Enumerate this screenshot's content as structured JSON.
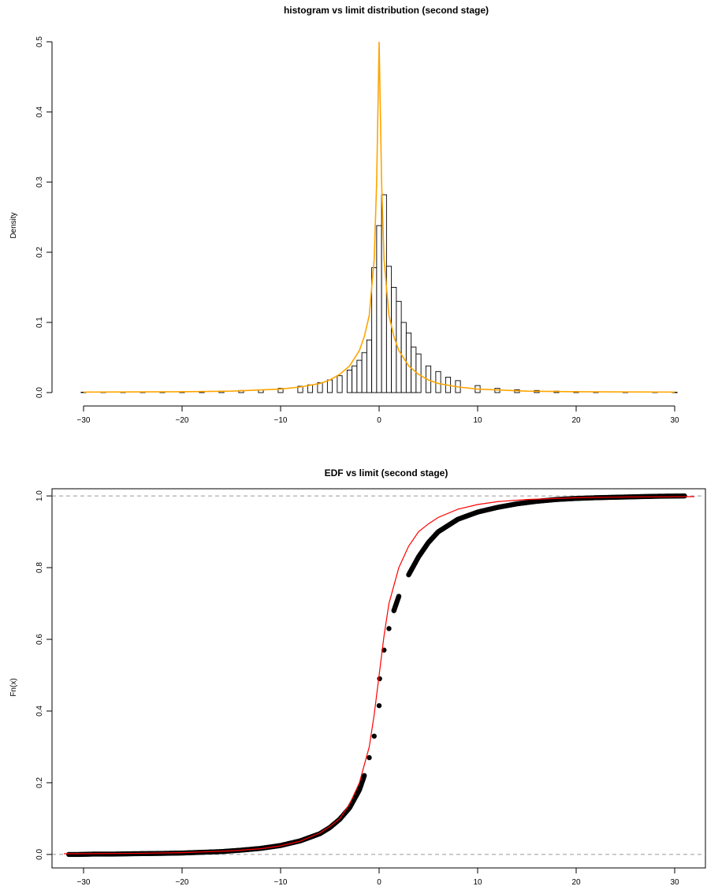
{
  "chart_data": [
    {
      "type": "bar",
      "title": "histogram vs limit distribution (second stage)",
      "xlabel": "",
      "ylabel": "Density",
      "xlim": [
        -32,
        32
      ],
      "ylim": [
        0,
        0.5
      ],
      "x_ticks": [
        "−30",
        "−20",
        "−10",
        "0",
        "10",
        "20",
        "30"
      ],
      "y_ticks": [
        "0.0",
        "0.1",
        "0.2",
        "0.3",
        "0.4",
        "0.5"
      ],
      "grid": false,
      "histogram": {
        "bin_width": 0.5,
        "bins": [
          {
            "x": -30,
            "d": 0.0005
          },
          {
            "x": -28,
            "d": 0.0006
          },
          {
            "x": -26,
            "d": 0.0007
          },
          {
            "x": -24,
            "d": 0.0009
          },
          {
            "x": -22,
            "d": 0.001
          },
          {
            "x": -20,
            "d": 0.0012
          },
          {
            "x": -18,
            "d": 0.0016
          },
          {
            "x": -16,
            "d": 0.002
          },
          {
            "x": -14,
            "d": 0.003
          },
          {
            "x": -12,
            "d": 0.004
          },
          {
            "x": -10,
            "d": 0.006
          },
          {
            "x": -8,
            "d": 0.009
          },
          {
            "x": -7,
            "d": 0.011
          },
          {
            "x": -6,
            "d": 0.014
          },
          {
            "x": -5,
            "d": 0.018
          },
          {
            "x": -4,
            "d": 0.024
          },
          {
            "x": -3,
            "d": 0.032
          },
          {
            "x": -2.5,
            "d": 0.038
          },
          {
            "x": -2,
            "d": 0.046
          },
          {
            "x": -1.5,
            "d": 0.057
          },
          {
            "x": -1,
            "d": 0.075
          },
          {
            "x": -0.5,
            "d": 0.178
          },
          {
            "x": 0,
            "d": 0.238
          },
          {
            "x": 0.5,
            "d": 0.282
          },
          {
            "x": 1,
            "d": 0.18
          },
          {
            "x": 1.5,
            "d": 0.15
          },
          {
            "x": 2,
            "d": 0.13
          },
          {
            "x": 2.5,
            "d": 0.1
          },
          {
            "x": 3,
            "d": 0.085
          },
          {
            "x": 3.5,
            "d": 0.065
          },
          {
            "x": 4,
            "d": 0.055
          },
          {
            "x": 5,
            "d": 0.038
          },
          {
            "x": 6,
            "d": 0.03
          },
          {
            "x": 7,
            "d": 0.022
          },
          {
            "x": 8,
            "d": 0.017
          },
          {
            "x": 10,
            "d": 0.01
          },
          {
            "x": 12,
            "d": 0.006
          },
          {
            "x": 14,
            "d": 0.004
          },
          {
            "x": 16,
            "d": 0.003
          },
          {
            "x": 18,
            "d": 0.002
          },
          {
            "x": 20,
            "d": 0.0015
          },
          {
            "x": 22,
            "d": 0.001
          },
          {
            "x": 25,
            "d": 0.0008
          },
          {
            "x": 28,
            "d": 0.0006
          },
          {
            "x": 30,
            "d": 0.0005
          }
        ]
      },
      "density_curve": {
        "color": "#ffa500",
        "points": [
          [
            -30,
            0.0007
          ],
          [
            -20,
            0.0012
          ],
          [
            -15,
            0.002
          ],
          [
            -10,
            0.005
          ],
          [
            -8,
            0.008
          ],
          [
            -6,
            0.013
          ],
          [
            -5,
            0.018
          ],
          [
            -4,
            0.026
          ],
          [
            -3,
            0.038
          ],
          [
            -2,
            0.06
          ],
          [
            -1.5,
            0.08
          ],
          [
            -1,
            0.11
          ],
          [
            -0.5,
            0.19
          ],
          [
            -0.25,
            0.3
          ],
          [
            0,
            0.5
          ],
          [
            0.25,
            0.3
          ],
          [
            0.5,
            0.19
          ],
          [
            1,
            0.11
          ],
          [
            1.5,
            0.08
          ],
          [
            2,
            0.06
          ],
          [
            3,
            0.038
          ],
          [
            4,
            0.026
          ],
          [
            5,
            0.018
          ],
          [
            6,
            0.013
          ],
          [
            8,
            0.008
          ],
          [
            10,
            0.005
          ],
          [
            15,
            0.002
          ],
          [
            20,
            0.0012
          ],
          [
            30,
            0.0007
          ]
        ]
      }
    },
    {
      "type": "scatter",
      "title": "EDF vs limit (second stage)",
      "xlabel": "",
      "ylabel": "Fn(x)",
      "xlim": [
        -32,
        32
      ],
      "ylim": [
        -0.02,
        1.02
      ],
      "x_ticks": [
        "−30",
        "−20",
        "−10",
        "0",
        "10",
        "20",
        "30"
      ],
      "y_ticks": [
        "0.0",
        "0.2",
        "0.4",
        "0.6",
        "0.8",
        "1.0"
      ],
      "grid": false,
      "reference_lines": [
        0,
        1
      ],
      "edf_points": [
        [
          -31.5,
          0.0
        ],
        [
          -30.5,
          0.0
        ],
        [
          -29,
          0.001
        ],
        [
          -27,
          0.001
        ],
        [
          -25,
          0.002
        ],
        [
          -22,
          0.003
        ],
        [
          -20,
          0.004
        ],
        [
          -18,
          0.006
        ],
        [
          -16,
          0.008
        ],
        [
          -14,
          0.012
        ],
        [
          -12,
          0.017
        ],
        [
          -10,
          0.025
        ],
        [
          -8,
          0.038
        ],
        [
          -6,
          0.058
        ],
        [
          -5,
          0.075
        ],
        [
          -4,
          0.098
        ],
        [
          -3,
          0.13
        ],
        [
          -2,
          0.18
        ],
        [
          -1.5,
          0.22
        ],
        [
          -1,
          0.27
        ],
        [
          -0.5,
          0.33
        ],
        [
          0,
          0.415
        ],
        [
          0.05,
          0.49
        ],
        [
          0.5,
          0.57
        ],
        [
          1,
          0.63
        ],
        [
          1.5,
          0.68
        ],
        [
          2,
          0.72
        ],
        [
          3,
          0.78
        ],
        [
          4,
          0.83
        ],
        [
          5,
          0.87
        ],
        [
          6,
          0.9
        ],
        [
          8,
          0.935
        ],
        [
          10,
          0.955
        ],
        [
          12,
          0.968
        ],
        [
          14,
          0.978
        ],
        [
          16,
          0.985
        ],
        [
          18,
          0.99
        ],
        [
          20,
          0.993
        ],
        [
          22,
          0.995
        ],
        [
          25,
          0.997
        ],
        [
          28,
          0.999
        ],
        [
          31,
          1.0
        ]
      ],
      "limit_curve": {
        "color": "#ff0000",
        "points": [
          [
            -32,
            0.002
          ],
          [
            -25,
            0.003
          ],
          [
            -20,
            0.005
          ],
          [
            -15,
            0.01
          ],
          [
            -12,
            0.016
          ],
          [
            -10,
            0.024
          ],
          [
            -8,
            0.037
          ],
          [
            -6,
            0.06
          ],
          [
            -5,
            0.078
          ],
          [
            -4,
            0.1
          ],
          [
            -3,
            0.14
          ],
          [
            -2,
            0.2
          ],
          [
            -1.5,
            0.25
          ],
          [
            -1,
            0.3
          ],
          [
            -0.5,
            0.39
          ],
          [
            0,
            0.5
          ],
          [
            0.5,
            0.61
          ],
          [
            1,
            0.7
          ],
          [
            1.5,
            0.75
          ],
          [
            2,
            0.8
          ],
          [
            3,
            0.86
          ],
          [
            4,
            0.9
          ],
          [
            5,
            0.922
          ],
          [
            6,
            0.94
          ],
          [
            8,
            0.963
          ],
          [
            10,
            0.976
          ],
          [
            12,
            0.984
          ],
          [
            15,
            0.99
          ],
          [
            20,
            0.995
          ],
          [
            25,
            0.997
          ],
          [
            32,
            0.998
          ]
        ]
      }
    }
  ],
  "colors": {
    "hist_curve": "#ffa500",
    "edf_curve": "#ff0000",
    "refline": "#999999"
  }
}
